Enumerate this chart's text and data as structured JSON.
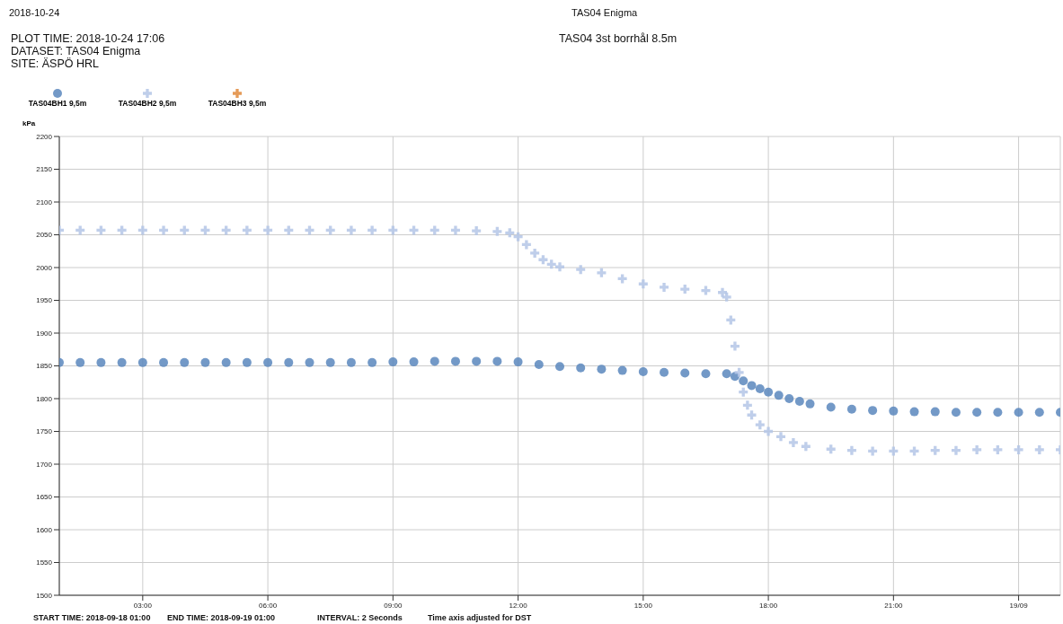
{
  "chart_data": {
    "type": "scatter",
    "title": "TAS04 3st borrhål 8.5m",
    "ylabel": "kPa",
    "annotations": [
      "2018-10-24",
      "TAS04 Enigma",
      "PLOT TIME: 2018-10-24 17:06",
      "DATASET: TAS04 Enigma",
      "SITE: ÄSPÖ HRL",
      "START TIME: 2018-09-18 01:00",
      "END TIME: 2018-09-19 01:00",
      "INTERVAL: 2 Seconds",
      "Time axis adjusted for DST"
    ],
    "xlim": [
      1,
      25
    ],
    "xticks": [
      {
        "value": 3,
        "label": "03:00"
      },
      {
        "value": 6,
        "label": "06:00"
      },
      {
        "value": 9,
        "label": "09:00"
      },
      {
        "value": 12,
        "label": "12:00"
      },
      {
        "value": 15,
        "label": "15:00"
      },
      {
        "value": 18,
        "label": "18:00"
      },
      {
        "value": 21,
        "label": "21:00"
      },
      {
        "value": 24,
        "label": "19/09"
      }
    ],
    "ylim": [
      1500,
      2200
    ],
    "yticks": [
      1500,
      1550,
      1600,
      1650,
      1700,
      1750,
      1800,
      1850,
      1900,
      1950,
      2000,
      2050,
      2100,
      2150,
      2200
    ],
    "grid": true,
    "legend": "top left",
    "series": [
      {
        "name": "TAS04BH1 9,5m",
        "color": "#5b87bd",
        "marker": "circle",
        "x": [
          1,
          1.5,
          2,
          2.5,
          3,
          3.5,
          4,
          4.5,
          5,
          5.5,
          6,
          6.5,
          7,
          7.5,
          8,
          8.5,
          9,
          9.5,
          10,
          10.5,
          11,
          11.5,
          12,
          12.5,
          13,
          13.5,
          14,
          14.5,
          15,
          15.5,
          16,
          16.5,
          17,
          17.2,
          17.4,
          17.6,
          17.8,
          18,
          18.25,
          18.5,
          18.75,
          19,
          19.5,
          20,
          20.5,
          21,
          21.5,
          22,
          22.5,
          23,
          23.5,
          24,
          24.5,
          25
        ],
        "values": [
          1855,
          1855,
          1855,
          1855,
          1855,
          1855,
          1855,
          1855,
          1855,
          1855,
          1855,
          1855,
          1855,
          1855,
          1855,
          1855,
          1856,
          1856,
          1857,
          1857,
          1857,
          1857,
          1856,
          1852,
          1849,
          1847,
          1845,
          1843,
          1841,
          1840,
          1839,
          1838,
          1838,
          1834,
          1827,
          1820,
          1815,
          1810,
          1805,
          1800,
          1796,
          1792,
          1787,
          1784,
          1782,
          1781,
          1780,
          1780,
          1779,
          1779,
          1779,
          1779,
          1779,
          1779
        ]
      },
      {
        "name": "TAS04BH2 9,5m",
        "color": "#b4c5e6",
        "marker": "cross",
        "x": [
          1,
          1.5,
          2,
          2.5,
          3,
          3.5,
          4,
          4.5,
          5,
          5.5,
          6,
          6.5,
          7,
          7.5,
          8,
          8.5,
          9,
          9.5,
          10,
          10.5,
          11,
          11.5,
          11.8,
          12,
          12.2,
          12.4,
          12.6,
          12.8,
          13,
          13.5,
          14,
          14.5,
          15,
          15.5,
          16,
          16.5,
          16.9,
          17,
          17.1,
          17.2,
          17.3,
          17.4,
          17.5,
          17.6,
          17.8,
          18,
          18.3,
          18.6,
          18.9,
          19.5,
          20,
          20.5,
          21,
          21.5,
          22,
          22.5,
          23,
          23.5,
          24,
          24.5,
          25
        ],
        "values": [
          2057,
          2057,
          2057,
          2057,
          2057,
          2057,
          2057,
          2057,
          2057,
          2057,
          2057,
          2057,
          2057,
          2057,
          2057,
          2057,
          2057,
          2057,
          2057,
          2057,
          2056,
          2055,
          2053,
          2047,
          2035,
          2022,
          2012,
          2005,
          2001,
          1997,
          1992,
          1983,
          1975,
          1970,
          1967,
          1965,
          1962,
          1955,
          1920,
          1880,
          1840,
          1810,
          1790,
          1775,
          1760,
          1750,
          1742,
          1733,
          1727,
          1723,
          1721,
          1720,
          1720,
          1720,
          1721,
          1721,
          1722,
          1722,
          1722,
          1722,
          1722
        ]
      },
      {
        "name": "TAS04BH3 9,5m",
        "color": "#e08a3c",
        "marker": "cross"
      }
    ]
  }
}
